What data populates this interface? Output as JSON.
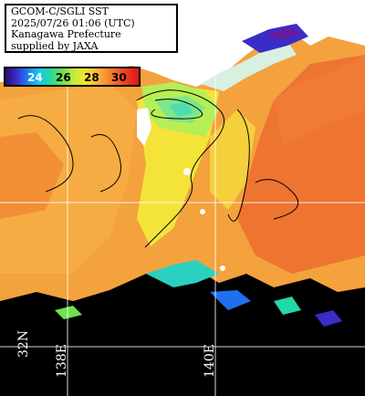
{
  "title_lines": [
    "GCOM-C/SGLI SST",
    "2025/07/26 01:06 (UTC)",
    "Kanagawa Prefecture",
    "supplied by JAXA"
  ],
  "colorbar": {
    "labels": [
      "24",
      "26",
      "28",
      "30"
    ],
    "label_colors": [
      "#ffffff",
      "#000000",
      "#000000",
      "#000000"
    ]
  },
  "grid_labels": {
    "lat": "32N",
    "lon_left": "138E",
    "lon_right": "140E"
  },
  "colors": {
    "land": "#ffffff",
    "cloud_mask": "#000000",
    "warm_sea": "#f07030",
    "mid_sea": "#f0b040",
    "cool_sea": "#9ef080"
  }
}
